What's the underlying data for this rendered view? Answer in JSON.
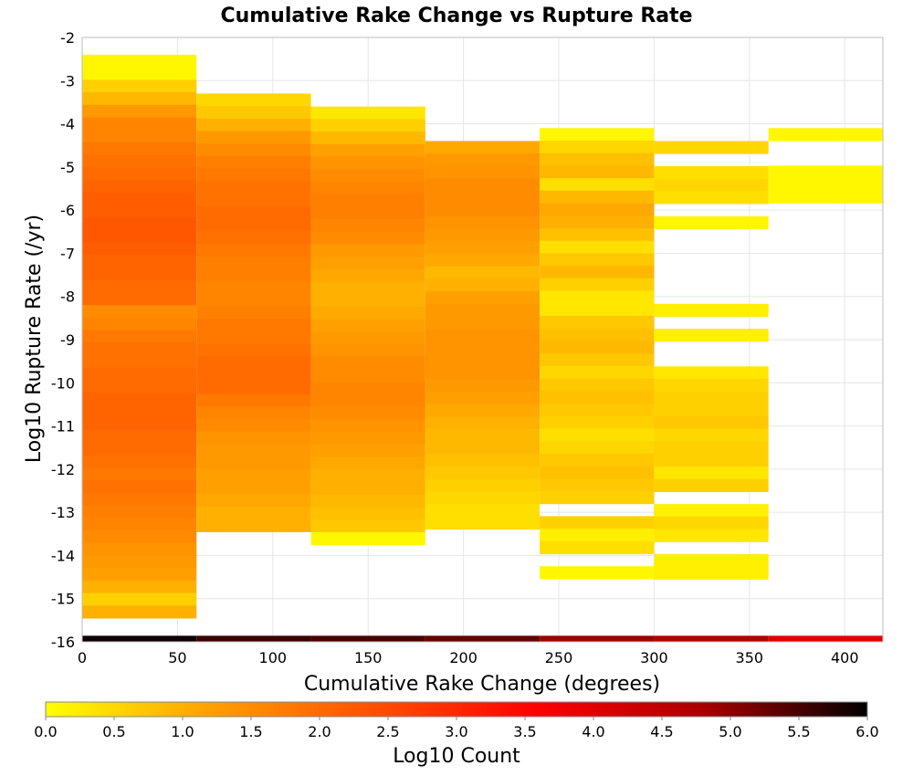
{
  "chart_data": {
    "type": "heatmap",
    "title": "Cumulative Rake Change vs Rupture Rate",
    "xlabel": "Cumulative Rake Change (degrees)",
    "ylabel": "Log10 Rupture Rate (/yr)",
    "xlim": [
      0,
      420
    ],
    "ylim": [
      -16,
      -2
    ],
    "x_ticks": [
      0,
      50,
      100,
      150,
      200,
      250,
      300,
      350,
      400
    ],
    "y_ticks": [
      -2,
      -3,
      -4,
      -5,
      -6,
      -7,
      -8,
      -9,
      -10,
      -11,
      -12,
      -13,
      -14,
      -15,
      -16
    ],
    "grid": true,
    "x_bin_edges": [
      0,
      60,
      120,
      180,
      240,
      300,
      360,
      420
    ],
    "y_bin_height": 0.29,
    "colorbar": {
      "label": "Log10 Count",
      "range": [
        0.0,
        6.0
      ],
      "ticks": [
        "0.0",
        "0.5",
        "1.0",
        "1.5",
        "2.0",
        "2.5",
        "3.0",
        "3.5",
        "4.0",
        "4.5",
        "5.0",
        "5.5",
        "6.0"
      ],
      "colors": [
        "#ffff00",
        "#ffa000",
        "#ff5000",
        "#ff0000",
        "#aa0000",
        "#000000"
      ]
    },
    "columns": [
      {
        "x_start": 0,
        "x_end": 60,
        "y_top": -2.4,
        "values": [
          0.1,
          0.1,
          0.6,
          0.9,
          1.3,
          1.6,
          1.6,
          1.8,
          1.9,
          2.0,
          2.1,
          2.2,
          2.2,
          2.3,
          2.3,
          2.2,
          2.1,
          2.1,
          2.0,
          2.0,
          1.5,
          1.6,
          1.8,
          1.9,
          1.9,
          2.0,
          2.0,
          2.1,
          2.1,
          2.1,
          2.0,
          2.0,
          1.9,
          1.8,
          1.9,
          1.8,
          1.7,
          1.6,
          1.5,
          1.4,
          1.3,
          1.2,
          1.0,
          0.6,
          1.0,
          5.9
        ]
      },
      {
        "x_start": 60,
        "x_end": 120,
        "y_top": -3.3,
        "values": [
          0.5,
          0.7,
          1.0,
          1.3,
          1.5,
          1.7,
          1.8,
          1.9,
          1.9,
          2.0,
          2.0,
          1.9,
          1.8,
          1.7,
          1.7,
          1.6,
          1.6,
          1.7,
          1.8,
          1.8,
          1.9,
          2.0,
          2.0,
          2.0,
          1.8,
          1.6,
          1.5,
          1.4,
          1.3,
          1.3,
          1.2,
          1.2,
          1.1,
          1.0,
          1.0,
          5.6
        ]
      },
      {
        "x_start": 120,
        "x_end": 180,
        "y_top": -3.6,
        "values": [
          0.3,
          0.6,
          0.9,
          1.2,
          1.4,
          1.5,
          1.6,
          1.7,
          1.7,
          1.6,
          1.5,
          1.3,
          1.2,
          1.1,
          1.0,
          1.0,
          1.1,
          1.2,
          1.3,
          1.4,
          1.5,
          1.5,
          1.6,
          1.6,
          1.5,
          1.4,
          1.3,
          1.2,
          1.1,
          1.0,
          1.0,
          0.9,
          0.8,
          0.7,
          0.1,
          5.5
        ]
      },
      {
        "x_start": 180,
        "x_end": 240,
        "y_top": -4.4,
        "values": [
          1.1,
          1.3,
          1.4,
          1.5,
          1.5,
          1.5,
          1.4,
          1.3,
          1.2,
          1.1,
          0.9,
          1.0,
          1.2,
          1.3,
          1.3,
          1.4,
          1.4,
          1.4,
          1.4,
          1.3,
          1.2,
          1.1,
          1.0,
          0.9,
          0.9,
          0.8,
          0.7,
          0.6,
          0.5,
          0.4,
          0.4,
          5.3
        ]
      },
      {
        "x_start": 240,
        "x_end": 300,
        "y_top": -4.1,
        "values": [
          0.1,
          0.5,
          0.8,
          0.9,
          0.4,
          0.9,
          1.1,
          1.0,
          0.8,
          0.4,
          0.7,
          0.9,
          0.6,
          0.3,
          0.3,
          0.7,
          0.8,
          0.9,
          0.7,
          0.5,
          0.7,
          0.8,
          0.7,
          0.6,
          0.4,
          0.5,
          0.7,
          0.8,
          0.7,
          0.6,
          null,
          0.6,
          0.2,
          0.4,
          null,
          0.1,
          null,
          null,
          null,
          null,
          null,
          null,
          null,
          null,
          null,
          null,
          null,
          4.9
        ]
      },
      {
        "x_start": 300,
        "x_end": 360,
        "y_top": -4.4,
        "values": [
          0.5,
          null,
          0.4,
          0.5,
          0.4,
          null,
          0.1,
          null,
          null,
          null,
          null,
          null,
          null,
          0.2,
          null,
          0.2,
          null,
          null,
          0.3,
          0.5,
          0.6,
          0.6,
          0.7,
          0.5,
          0.6,
          0.6,
          0.3,
          0.6,
          null,
          0.2,
          0.5,
          0.3,
          null,
          0.2,
          0.2,
          null,
          null,
          null,
          null,
          null,
          null,
          null,
          null,
          null,
          null,
          4.7
        ]
      },
      {
        "x_start": 360,
        "x_end": 420,
        "y_top": -4.1,
        "values": [
          0.1,
          null,
          null,
          0.1,
          0.1,
          0.1,
          null,
          null,
          null,
          null,
          null,
          null,
          null,
          null,
          null,
          null,
          null,
          null,
          null,
          null,
          null,
          null,
          null,
          null,
          null,
          null,
          null,
          null,
          null,
          null,
          null,
          null,
          null,
          null,
          null,
          null,
          null,
          null,
          null,
          null,
          null,
          null,
          4.0
        ]
      }
    ]
  }
}
